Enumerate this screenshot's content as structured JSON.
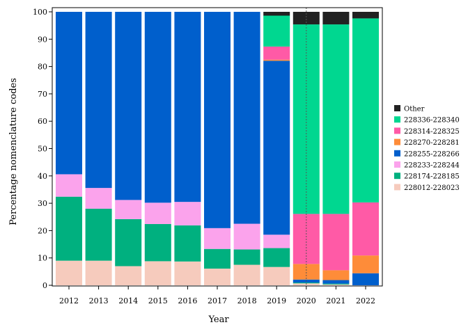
{
  "chart_data": {
    "type": "bar",
    "stacked": true,
    "title": "",
    "xlabel": "Year",
    "ylabel": "Percentage nomenclature codes",
    "ylim": [
      0,
      100
    ],
    "yticks": [
      0,
      10,
      20,
      30,
      40,
      50,
      60,
      70,
      80,
      90,
      100
    ],
    "grid": false,
    "legend_position": "right",
    "annotations": [
      {
        "type": "vertical-dotted-line",
        "at": "2020"
      }
    ],
    "categories": [
      "2012",
      "2013",
      "2014",
      "2015",
      "2016",
      "2017",
      "2018",
      "2019",
      "2020",
      "2021",
      "2022"
    ],
    "series": [
      {
        "name": "228012-228023",
        "color": "#f6cbbd",
        "values": [
          9,
          9,
          7,
          8.8,
          8.7,
          6.1,
          7.5,
          6.7,
          0.7,
          0.3,
          0
        ]
      },
      {
        "name": "228174-228185",
        "color": "#00b07f",
        "values": [
          23.4,
          19,
          17.2,
          13.6,
          13.2,
          7.2,
          5.6,
          6.9,
          0.3,
          0.3,
          0
        ]
      },
      {
        "name": "228233-228244",
        "color": "#fba3ec",
        "values": [
          8.2,
          7.6,
          7,
          7.8,
          8.6,
          7.6,
          9.4,
          4.9,
          0,
          0,
          0
        ]
      },
      {
        "name": "228255-228266",
        "color": "#005fcc",
        "values": [
          59.4,
          64.4,
          68.8,
          69.8,
          69.5,
          79.1,
          77.5,
          63.6,
          1.1,
          1.3,
          4.4
        ]
      },
      {
        "name": "228270-228281",
        "color": "#fe8c39",
        "values": [
          0,
          0,
          0,
          0,
          0,
          0,
          0,
          0.4,
          5.7,
          3.6,
          6.5
        ]
      },
      {
        "name": "228314-228325",
        "color": "#ff5aa6",
        "values": [
          0,
          0,
          0,
          0,
          0,
          0,
          0,
          4.8,
          18.3,
          20.6,
          19.4
        ]
      },
      {
        "name": "228336-228340",
        "color": "#00d790",
        "values": [
          0,
          0,
          0,
          0,
          0,
          0,
          0,
          11.3,
          69.3,
          69.3,
          67.3
        ]
      },
      {
        "name": "Other",
        "color": "#222222",
        "values": [
          0,
          0,
          0,
          0,
          0,
          0,
          0,
          1.4,
          4.6,
          4.6,
          2.4
        ]
      }
    ]
  }
}
